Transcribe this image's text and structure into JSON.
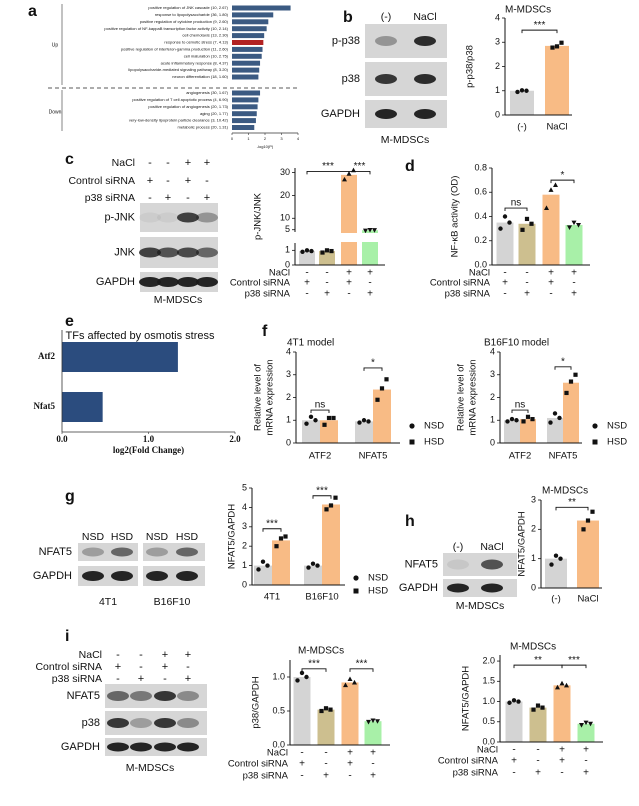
{
  "panel_labels": [
    "a",
    "b",
    "c",
    "d",
    "e",
    "f",
    "g",
    "h",
    "i"
  ],
  "chart_data": [
    {
      "type": "barh",
      "categories": [
        "positive regulation of JNK cascade (10, 2.67)",
        "response to lipopolysaccharide (36, 1.80)",
        "positive regulation of cytokine production (9, 2.60)",
        "positive regulation of NF-kappaB transcription factor activity (10, 2.14)",
        "cell chemotaxis (13, 2.30)",
        "response to osmotic stress (7, 4.13)",
        "positive regulation of interferon-gamma production (11, 2.60)",
        "cell maturation (10, 2.75)",
        "acute inflammatory response (8, 4.37)",
        "lipopolysaccharide-mediated signaling pathway (8, 3.20)",
        "neuron differentiation (18, 1.60)",
        "angiogenesis (30, 1.67)",
        "positive regulation of T cell apoptotic process (4, 6.90)",
        "positive regulation of angiogenesis (20, 1.73)",
        "aging (20, 1.77)",
        "very-low-density lipoprotein particle clearance (3, 10.42)",
        "metabolic process (20, 1.31)"
      ],
      "values": [
        3.55,
        2.5,
        2.2,
        2.1,
        1.95,
        1.9,
        1.85,
        1.8,
        1.7,
        1.65,
        1.6,
        1.7,
        1.6,
        1.55,
        1.5,
        1.45,
        1.35
      ],
      "colors": [
        "#3b5a82",
        "#3b5a82",
        "#3b5a82",
        "#3b5a82",
        "#3b5a82",
        "#b22222",
        "#3b5a82",
        "#3b5a82",
        "#3b5a82",
        "#3b5a82",
        "#3b5a82",
        "#3b5a82",
        "#3b5a82",
        "#3b5a82",
        "#3b5a82",
        "#3b5a82",
        "#3b5a82"
      ],
      "group_labels": [
        "Up",
        "Down"
      ],
      "xlim": [
        0,
        4
      ],
      "xticks": [
        0,
        1,
        2,
        3,
        4
      ],
      "xlabel": "-log10(P)"
    },
    {
      "type": "bar",
      "title": "M-MDSCs",
      "ylabel": "p-p38/p38",
      "categories": [
        "(-)",
        "NaCl"
      ],
      "values": [
        1.0,
        2.85
      ],
      "colors": [
        "#d4d4d4",
        "#f8bb85"
      ],
      "points": [
        [
          0.95,
          1.02,
          1.0
        ],
        [
          2.78,
          2.83,
          2.98
        ]
      ],
      "ylim": [
        0,
        4
      ],
      "yticks": [
        0,
        1,
        2,
        3,
        4
      ],
      "significance": [
        "***"
      ]
    },
    {
      "type": "bar",
      "ylabel": "p-JNK/JNK",
      "categories": [
        null,
        null,
        null,
        null
      ],
      "values": [
        0.95,
        0.95,
        29,
        4.8
      ],
      "colors": [
        "#d4d4d4",
        "#cdbf8f",
        "#f8bb85",
        "#a8f0a8"
      ],
      "points": [
        [
          0.9,
          1.0,
          0.95
        ],
        [
          0.85,
          1.0,
          0.95
        ],
        [
          27,
          29.5,
          31
        ],
        [
          4.6,
          4.9,
          4.8
        ]
      ],
      "ylim": [
        0,
        32
      ],
      "axis_break": [
        1.5,
        4
      ],
      "yticks": [
        0,
        1,
        5,
        10,
        20,
        30
      ],
      "conditions": [
        {
          "name": "NaCl",
          "values": [
            "-",
            "-",
            "+",
            "+"
          ]
        },
        {
          "name": "Control siRNA",
          "values": [
            "+",
            "-",
            "+",
            "-"
          ]
        },
        {
          "name": "p38 siRNA",
          "values": [
            "-",
            "+",
            "-",
            "+"
          ]
        }
      ],
      "significance": [
        "***",
        "***"
      ]
    },
    {
      "type": "bar",
      "ylabel": "NF-κB activity (OD)",
      "categories": [
        null,
        null,
        null,
        null
      ],
      "values": [
        0.35,
        0.34,
        0.58,
        0.33
      ],
      "colors": [
        "#d4d4d4",
        "#cdbf8f",
        "#f8bb85",
        "#a8f0a8"
      ],
      "points": [
        [
          0.3,
          0.4,
          0.35
        ],
        [
          0.29,
          0.38,
          0.34
        ],
        [
          0.47,
          0.62,
          0.66
        ],
        [
          0.31,
          0.35,
          0.33
        ]
      ],
      "ylim": [
        0,
        0.8
      ],
      "yticks": [
        {
          "value": 0,
          "label": "0.0"
        },
        {
          "value": 0.2,
          "label": "0.2"
        },
        {
          "value": 0.4,
          "label": "0.4"
        },
        {
          "value": 0.6,
          "label": "0.6"
        },
        {
          "value": 0.8,
          "label": "0.8"
        }
      ],
      "conditions": [
        {
          "name": "NaCl",
          "values": [
            "-",
            "-",
            "+",
            "+"
          ]
        },
        {
          "name": "Control siRNA",
          "values": [
            "+",
            "-",
            "+",
            "-"
          ]
        },
        {
          "name": "p38 siRNA",
          "values": [
            "-",
            "+",
            "-",
            "+"
          ]
        }
      ],
      "significance": [
        "ns",
        "*"
      ]
    },
    {
      "type": "barh",
      "title": "TFs affected by osmotis stress",
      "categories": [
        "Atf2",
        "Nfat5"
      ],
      "values": [
        1.34,
        0.47
      ],
      "colors": [
        "#2b4c7e",
        "#2b4c7e"
      ],
      "xlim": [
        0,
        2
      ],
      "xticks": [
        {
          "value": 0,
          "label": "0.0"
        },
        {
          "value": 1,
          "label": "1.0"
        },
        {
          "value": 2,
          "label": "2.0"
        }
      ],
      "xlabel": "log2(Fold Change)"
    },
    {
      "type": "bar",
      "title": "4T1 model",
      "ylabel": [
        "Relative level of",
        "mRNA expression"
      ],
      "categories": [
        "ATF2",
        "NFAT5"
      ],
      "series": [
        {
          "name": "NSD",
          "color": "#d4d4d4",
          "values": [
            1.0,
            0.95
          ],
          "points": [
            [
              0.85,
              1.15,
              1.0
            ],
            [
              0.9,
              1.0,
              0.95
            ]
          ]
        },
        {
          "name": "HSD",
          "color": "#f8bb85",
          "values": [
            1.0,
            2.35
          ],
          "points": [
            [
              0.8,
              1.1,
              1.1
            ],
            [
              1.9,
              2.4,
              2.8
            ]
          ]
        }
      ],
      "ylim": [
        0,
        4
      ],
      "yticks": [
        0,
        1,
        2,
        3,
        4
      ],
      "significance": [
        "ns",
        "*"
      ]
    },
    {
      "type": "bar",
      "title": "B16F10 model",
      "ylabel": [
        "Relative level of",
        "mRNA expression"
      ],
      "categories": [
        "ATF2",
        "NFAT5"
      ],
      "series": [
        {
          "name": "NSD",
          "color": "#d4d4d4",
          "values": [
            1.0,
            1.1
          ],
          "points": [
            [
              0.95,
              1.05,
              1.0
            ],
            [
              0.9,
              1.3,
              1.1
            ]
          ]
        },
        {
          "name": "HSD",
          "color": "#f8bb85",
          "values": [
            1.05,
            2.65
          ],
          "points": [
            [
              0.95,
              1.15,
              1.05
            ],
            [
              2.2,
              2.7,
              3.0
            ]
          ]
        }
      ],
      "ylim": [
        0,
        4
      ],
      "yticks": [
        0,
        1,
        2,
        3,
        4
      ],
      "significance": [
        "ns",
        "*"
      ]
    },
    {
      "type": "bar",
      "ylabel": "NFAT5/GAPDH",
      "categories": [
        "4T1",
        "B16F10"
      ],
      "series": [
        {
          "name": "NSD",
          "color": "#d4d4d4",
          "values": [
            1.0,
            1.0
          ],
          "points": [
            [
              0.8,
              1.2,
              1.0
            ],
            [
              0.9,
              1.1,
              1.0
            ]
          ]
        },
        {
          "name": "HSD",
          "color": "#f8bb85",
          "values": [
            2.3,
            4.15
          ],
          "points": [
            [
              2.0,
              2.4,
              2.5
            ],
            [
              3.9,
              4.1,
              4.5
            ]
          ]
        }
      ],
      "ylim": [
        0,
        5
      ],
      "yticks": [
        0,
        1,
        2,
        3,
        4,
        5
      ],
      "significance": [
        "***",
        "***"
      ]
    },
    {
      "type": "bar",
      "title": "M-MDSCs",
      "ylabel": "NFAT5/GAPDH",
      "categories": [
        "(-)",
        "NaCl"
      ],
      "values": [
        1.0,
        2.3
      ],
      "colors": [
        "#d4d4d4",
        "#f8bb85"
      ],
      "points": [
        [
          0.8,
          1.1,
          1.0
        ],
        [
          2.0,
          2.3,
          2.6
        ]
      ],
      "ylim": [
        0,
        3
      ],
      "yticks": [
        0,
        1,
        2,
        3
      ],
      "significance": [
        "**"
      ]
    },
    {
      "type": "bar",
      "title": "M-MDSCs",
      "ylabel": "p38/GAPDH",
      "categories": [
        null,
        null,
        null,
        null
      ],
      "values": [
        1.0,
        0.52,
        0.92,
        0.35
      ],
      "colors": [
        "#d4d4d4",
        "#cdbf8f",
        "#f8bb85",
        "#a8f0a8"
      ],
      "points": [
        [
          0.95,
          1.06,
          1.0
        ],
        [
          0.5,
          0.54,
          0.52
        ],
        [
          0.88,
          0.97,
          0.92
        ],
        [
          0.34,
          0.36,
          0.35
        ]
      ],
      "ylim": [
        0,
        1.25
      ],
      "yticks": [
        {
          "value": 0,
          "label": "0.0"
        },
        {
          "value": 0.5,
          "label": "0.5"
        },
        {
          "value": 1,
          "label": "1.0"
        }
      ],
      "conditions": [
        {
          "name": "NaCl",
          "values": [
            "-",
            "-",
            "+",
            "+"
          ]
        },
        {
          "name": "Control siRNA",
          "values": [
            "+",
            "-",
            "+",
            "-"
          ]
        },
        {
          "name": "p38 siRNA",
          "values": [
            "-",
            "+",
            "-",
            "+"
          ]
        }
      ],
      "significance": [
        "***",
        "***"
      ]
    },
    {
      "type": "bar",
      "title": "M-MDSCs",
      "ylabel": "NFAT5/GAPDH",
      "categories": [
        null,
        null,
        null,
        null
      ],
      "values": [
        1.0,
        0.85,
        1.4,
        0.45
      ],
      "colors": [
        "#d4d4d4",
        "#cdbf8f",
        "#f8bb85",
        "#a8f0a8"
      ],
      "points": [
        [
          0.97,
          1.03,
          1.0
        ],
        [
          0.8,
          0.9,
          0.85
        ],
        [
          1.35,
          1.45,
          1.4
        ],
        [
          0.42,
          0.48,
          0.45
        ]
      ],
      "ylim": [
        0,
        2.15
      ],
      "yticks": [
        {
          "value": 0,
          "label": "0.0"
        },
        {
          "value": 0.5,
          "label": "0.5"
        },
        {
          "value": 1,
          "label": "1.0"
        },
        {
          "value": 1.5,
          "label": "1.5"
        },
        {
          "value": 2,
          "label": "2.0"
        }
      ],
      "conditions": [
        {
          "name": "NaCl",
          "values": [
            "-",
            "-",
            "+",
            "+"
          ]
        },
        {
          "name": "Control siRNA",
          "values": [
            "+",
            "-",
            "+",
            "-"
          ]
        },
        {
          "name": "p38 siRNA",
          "values": [
            "-",
            "+",
            "-",
            "+"
          ]
        }
      ],
      "significance": [
        "**",
        "***"
      ]
    }
  ],
  "blots": [
    {
      "lanes": [
        "(-)",
        "NaCl"
      ],
      "rows": [
        "p-p38",
        "p38",
        "GAPDH"
      ],
      "captions": [
        "M-MDSCs"
      ]
    },
    {
      "conditions": [
        {
          "name": "NaCl",
          "values": [
            "-",
            "-",
            "+",
            "+"
          ]
        },
        {
          "name": "Control siRNA",
          "values": [
            "+",
            "-",
            "+",
            "-"
          ]
        },
        {
          "name": "p38 siRNA",
          "values": [
            "-",
            "+",
            "-",
            "+"
          ]
        }
      ],
      "rows": [
        "p-JNK",
        "JNK",
        "GAPDH"
      ],
      "captions": [
        "M-MDSCs"
      ]
    },
    {
      "lanes": [
        "NSD",
        "HSD",
        "NSD",
        "HSD"
      ],
      "rows": [
        "NFAT5",
        "GAPDH"
      ],
      "captions": [
        "4T1",
        "B16F10"
      ]
    },
    {
      "lanes": [
        "(-)",
        "NaCl"
      ],
      "rows": [
        "NFAT5",
        "GAPDH"
      ],
      "captions": [
        "M-MDSCs"
      ]
    },
    {
      "conditions": [
        {
          "name": "NaCl",
          "values": [
            "-",
            "-",
            "+",
            "+"
          ]
        },
        {
          "name": "Control siRNA",
          "values": [
            "+",
            "-",
            "+",
            "-"
          ]
        },
        {
          "name": "p38 siRNA",
          "values": [
            "-",
            "+",
            "-",
            "+"
          ]
        }
      ],
      "rows": [
        "NFAT5",
        "p38",
        "GAPDH"
      ],
      "captions": [
        "M-MDSCs"
      ]
    }
  ]
}
